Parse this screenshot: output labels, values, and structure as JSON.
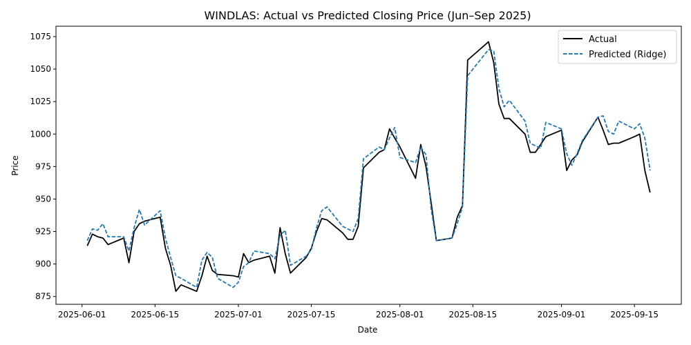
{
  "chart_data": {
    "type": "line",
    "title": "WINDLAS: Actual vs Predicted Closing Price (Jun–Sep 2025)",
    "xlabel": "Date",
    "ylabel": "Price",
    "xlim": [
      "2025-05-27",
      "2025-09-24"
    ],
    "ylim": [
      869,
      1083
    ],
    "x_ticks": [
      "2025-06-01",
      "2025-06-15",
      "2025-07-01",
      "2025-07-15",
      "2025-08-01",
      "2025-08-15",
      "2025-09-01",
      "2025-09-15"
    ],
    "y_ticks": [
      875,
      900,
      925,
      950,
      975,
      1000,
      1025,
      1050,
      1075
    ],
    "grid": false,
    "legend_position": "top-right",
    "x": [
      "2025-06-02",
      "2025-06-03",
      "2025-06-04",
      "2025-06-05",
      "2025-06-06",
      "2025-06-09",
      "2025-06-10",
      "2025-06-11",
      "2025-06-12",
      "2025-06-13",
      "2025-06-16",
      "2025-06-17",
      "2025-06-18",
      "2025-06-19",
      "2025-06-20",
      "2025-06-23",
      "2025-06-24",
      "2025-06-25",
      "2025-06-26",
      "2025-06-27",
      "2025-06-30",
      "2025-07-01",
      "2025-07-02",
      "2025-07-03",
      "2025-07-04",
      "2025-07-07",
      "2025-07-08",
      "2025-07-09",
      "2025-07-10",
      "2025-07-11",
      "2025-07-14",
      "2025-07-15",
      "2025-07-16",
      "2025-07-17",
      "2025-07-18",
      "2025-07-21",
      "2025-07-22",
      "2025-07-23",
      "2025-07-24",
      "2025-07-25",
      "2025-07-28",
      "2025-07-29",
      "2025-07-30",
      "2025-07-31",
      "2025-08-01",
      "2025-08-04",
      "2025-08-05",
      "2025-08-06",
      "2025-08-07",
      "2025-08-08",
      "2025-08-11",
      "2025-08-12",
      "2025-08-13",
      "2025-08-14",
      "2025-08-18",
      "2025-08-19",
      "2025-08-20",
      "2025-08-21",
      "2025-08-22",
      "2025-08-25",
      "2025-08-26",
      "2025-08-27",
      "2025-08-28",
      "2025-08-29",
      "2025-09-01",
      "2025-09-02",
      "2025-09-03",
      "2025-09-04",
      "2025-09-05",
      "2025-09-08",
      "2025-09-09",
      "2025-09-10",
      "2025-09-11",
      "2025-09-12",
      "2025-09-15",
      "2025-09-16",
      "2025-09-17",
      "2025-09-18"
    ],
    "series": [
      {
        "name": "Actual",
        "color": "#000000",
        "dash": "solid",
        "values": [
          914,
          923,
          921,
          920,
          915,
          920,
          901,
          925,
          931,
          933,
          936,
          912,
          899,
          879,
          884,
          879,
          891,
          906,
          895,
          892,
          891,
          890,
          908,
          901,
          903,
          906,
          893,
          928,
          908,
          893,
          905,
          912,
          925,
          935,
          934,
          924,
          919,
          919,
          929,
          974,
          986,
          988,
          1004,
          997,
          990,
          966,
          992,
          975,
          947,
          918,
          920,
          936,
          945,
          1057,
          1071,
          1055,
          1023,
          1012,
          1012,
          1000,
          986,
          986,
          992,
          998,
          1003,
          972,
          980,
          984,
          994,
          1013,
          1003,
          992,
          993,
          993,
          998,
          1000,
          972,
          955
        ]
      },
      {
        "name": "Predicted (Ridge)",
        "color": "#1f77b4",
        "dash": "dashed",
        "values": [
          918,
          927,
          926,
          931,
          921,
          921,
          910,
          928,
          942,
          930,
          941,
          920,
          905,
          891,
          889,
          882,
          903,
          909,
          905,
          889,
          882,
          886,
          898,
          901,
          910,
          908,
          904,
          922,
          926,
          899,
          906,
          911,
          928,
          941,
          944,
          929,
          927,
          925,
          935,
          981,
          990,
          988,
          997,
          1005,
          982,
          978,
          990,
          984,
          942,
          918,
          920,
          931,
          944,
          1045,
          1065,
          1064,
          1035,
          1021,
          1026,
          1010,
          993,
          991,
          989,
          1009,
          1004,
          985,
          976,
          985,
          995,
          1013,
          1014,
          1002,
          1000,
          1010,
          1004,
          1008,
          997,
          972
        ]
      }
    ]
  }
}
